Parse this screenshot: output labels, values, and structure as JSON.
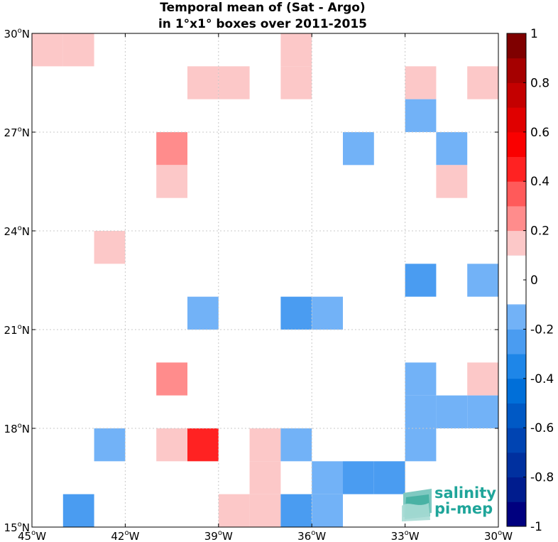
{
  "chart_data": {
    "type": "heatmap",
    "title_line1": "Temporal mean of (Sat - Argo)",
    "title_line2": "in 1°x1° boxes over 2011-2015",
    "xlim": [
      -45,
      -30
    ],
    "ylim": [
      15,
      30
    ],
    "x_ticks": [
      {
        "value": -45,
        "label": "45",
        "hemi": "W"
      },
      {
        "value": -42,
        "label": "42",
        "hemi": "W"
      },
      {
        "value": -39,
        "label": "39",
        "hemi": "W"
      },
      {
        "value": -36,
        "label": "36",
        "hemi": "W"
      },
      {
        "value": -33,
        "label": "33",
        "hemi": "W"
      },
      {
        "value": -30,
        "label": "30",
        "hemi": "W"
      }
    ],
    "y_ticks": [
      {
        "value": 15,
        "label": "15",
        "hemi": "N"
      },
      {
        "value": 18,
        "label": "18",
        "hemi": "N"
      },
      {
        "value": 21,
        "label": "21",
        "hemi": "N"
      },
      {
        "value": 24,
        "label": "24",
        "hemi": "N"
      },
      {
        "value": 27,
        "label": "27",
        "hemi": "N"
      },
      {
        "value": 30,
        "label": "30",
        "hemi": "N"
      }
    ],
    "grid": true,
    "colorbar": {
      "range": [
        -1,
        1
      ],
      "levels": 20,
      "ticks": [
        {
          "value": 1,
          "label": "1"
        },
        {
          "value": 0.8,
          "label": "0.8"
        },
        {
          "value": 0.6,
          "label": "0.6"
        },
        {
          "value": 0.4,
          "label": "0.4"
        },
        {
          "value": 0.2,
          "label": "0.2"
        },
        {
          "value": 0,
          "label": "0"
        },
        {
          "value": -0.2,
          "label": "-0.2"
        },
        {
          "value": -0.4,
          "label": "-0.4"
        },
        {
          "value": -0.6,
          "label": "-0.6"
        },
        {
          "value": -0.8,
          "label": "-0.8"
        },
        {
          "value": -1,
          "label": "-1"
        }
      ],
      "colors": [
        "#00007f",
        "#001c8e",
        "#00309f",
        "#0044b2",
        "#0059c5",
        "#006fd9",
        "#1e86e8",
        "#4a9cf1",
        "#72b2f7",
        "#a0cafa",
        "#cfe3fb",
        "#fcc8c8",
        "#ff8c8c",
        "#ff5a5a",
        "#ff2222",
        "#fa0000",
        "#e00000",
        "#c40000",
        "#a50000",
        "#7f0000"
      ]
    },
    "cells": [
      {
        "lon": -45,
        "lat": 29,
        "value": 0.15
      },
      {
        "lon": -44,
        "lat": 29,
        "value": 0.15
      },
      {
        "lon": -37,
        "lat": 29,
        "value": 0.15
      },
      {
        "lon": -40,
        "lat": 28,
        "value": 0.15
      },
      {
        "lon": -39,
        "lat": 28,
        "value": 0.15
      },
      {
        "lon": -37,
        "lat": 28,
        "value": 0.15
      },
      {
        "lon": -33,
        "lat": 28,
        "value": 0.15
      },
      {
        "lon": -31,
        "lat": 28,
        "value": 0.15
      },
      {
        "lon": -33,
        "lat": 27,
        "value": -0.15
      },
      {
        "lon": -41,
        "lat": 26,
        "value": 0.25
      },
      {
        "lon": -35,
        "lat": 26,
        "value": -0.15
      },
      {
        "lon": -32,
        "lat": 26,
        "value": -0.15
      },
      {
        "lon": -41,
        "lat": 25,
        "value": 0.15
      },
      {
        "lon": -32,
        "lat": 25,
        "value": 0.15
      },
      {
        "lon": -43,
        "lat": 23,
        "value": 0.15
      },
      {
        "lon": -33,
        "lat": 22,
        "value": -0.25
      },
      {
        "lon": -31,
        "lat": 22,
        "value": -0.15
      },
      {
        "lon": -40,
        "lat": 21,
        "value": -0.15
      },
      {
        "lon": -37,
        "lat": 21,
        "value": -0.25
      },
      {
        "lon": -36,
        "lat": 21,
        "value": -0.15
      },
      {
        "lon": -41,
        "lat": 19,
        "value": 0.25
      },
      {
        "lon": -33,
        "lat": 19,
        "value": -0.15
      },
      {
        "lon": -31,
        "lat": 19,
        "value": 0.15
      },
      {
        "lon": -33,
        "lat": 18,
        "value": -0.15
      },
      {
        "lon": -32,
        "lat": 18,
        "value": -0.15
      },
      {
        "lon": -31,
        "lat": 18,
        "value": -0.15
      },
      {
        "lon": -43,
        "lat": 17,
        "value": -0.15
      },
      {
        "lon": -41,
        "lat": 17,
        "value": 0.15
      },
      {
        "lon": -40,
        "lat": 17,
        "value": 0.45
      },
      {
        "lon": -38,
        "lat": 17,
        "value": 0.15
      },
      {
        "lon": -37,
        "lat": 17,
        "value": -0.15
      },
      {
        "lon": -33,
        "lat": 17,
        "value": -0.15
      },
      {
        "lon": -38,
        "lat": 16,
        "value": 0.15
      },
      {
        "lon": -36,
        "lat": 16,
        "value": -0.15
      },
      {
        "lon": -35,
        "lat": 16,
        "value": -0.25
      },
      {
        "lon": -34,
        "lat": 16,
        "value": -0.25
      },
      {
        "lon": -44,
        "lat": 15,
        "value": -0.25
      },
      {
        "lon": -39,
        "lat": 15,
        "value": 0.15
      },
      {
        "lon": -38,
        "lat": 15,
        "value": 0.15
      },
      {
        "lon": -37,
        "lat": 15,
        "value": -0.25
      },
      {
        "lon": -36,
        "lat": 15,
        "value": -0.15
      }
    ]
  },
  "logo": {
    "line1": "salinity",
    "line2": "pi-mep",
    "color": "#1fa59a"
  }
}
